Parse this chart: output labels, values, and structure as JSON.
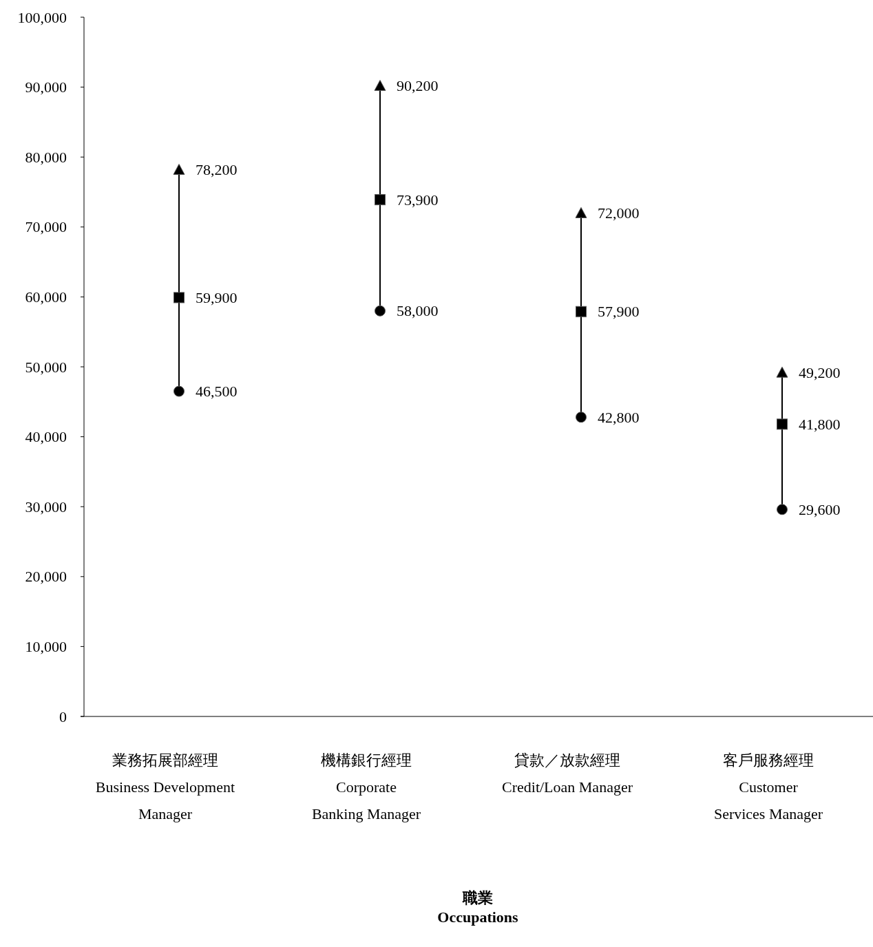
{
  "chart_data": {
    "type": "scatter",
    "xlabel": "職業\nOccupations",
    "categories": [
      "業務拓展部經理\nBusiness Development\nManager",
      "機構銀行經理\nCorporate\nBanking Manager",
      "貸款／放款經理\nCredit/Loan Manager",
      "客戶服務經理\nCustomer\nServices Manager"
    ],
    "series": [
      {
        "color": "#000000",
        "marker": "triangle",
        "values": [
          78200,
          90200,
          72000,
          49200
        ],
        "value_labels": [
          "78,200",
          "90,200",
          "72,000",
          "49,200"
        ]
      },
      {
        "color": "#000000",
        "marker": "square",
        "values": [
          59900,
          73900,
          57900,
          41800
        ],
        "value_labels": [
          "59,900",
          "73,900",
          "57,900",
          "41,800"
        ]
      },
      {
        "color": "#000000",
        "marker": "circle",
        "values": [
          46500,
          58000,
          42800,
          29600
        ],
        "value_labels": [
          "46,500",
          "58,000",
          "42,800",
          "29,600"
        ]
      }
    ],
    "ylim": [
      0,
      100000
    ],
    "yticks": [
      {
        "value": 0,
        "label": "0"
      },
      {
        "value": 10000,
        "label": "10,000"
      },
      {
        "value": 20000,
        "label": "20,000"
      },
      {
        "value": 30000,
        "label": "30,000"
      },
      {
        "value": 40000,
        "label": "40,000"
      },
      {
        "value": 50000,
        "label": "50,000"
      },
      {
        "value": 60000,
        "label": "60,000"
      },
      {
        "value": 70000,
        "label": "70,000"
      },
      {
        "value": 80000,
        "label": "80,000"
      },
      {
        "value": 90000,
        "label": "90,000"
      },
      {
        "value": 100000,
        "label": "100,000"
      }
    ]
  }
}
